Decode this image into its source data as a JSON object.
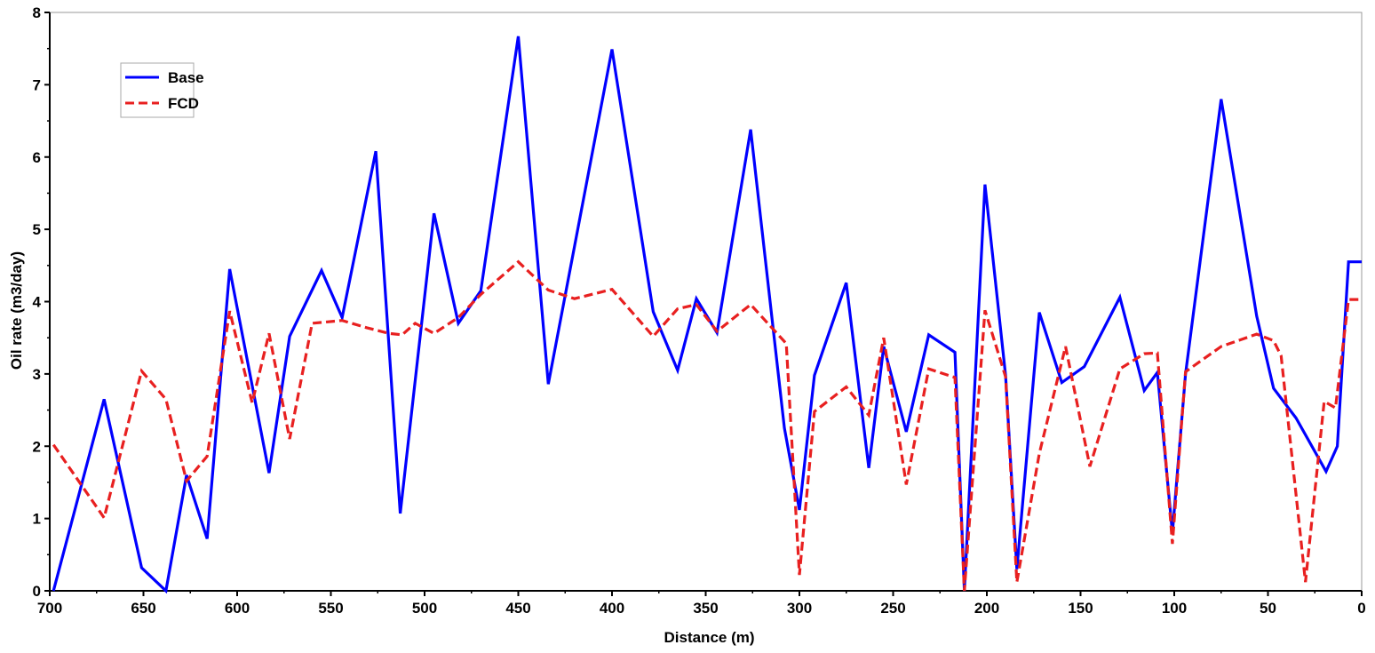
{
  "chart_data": {
    "type": "line",
    "title": "",
    "xlabel": "Distance (m)",
    "ylabel": "Oil rate (m3/day)",
    "xlim": [
      700,
      0
    ],
    "ylim": [
      0,
      8
    ],
    "x_reversed": true,
    "x_ticks": [
      700,
      650,
      600,
      550,
      500,
      450,
      400,
      350,
      300,
      250,
      200,
      150,
      100,
      50,
      0
    ],
    "y_ticks": [
      0,
      1,
      2,
      3,
      4,
      5,
      6,
      7,
      8
    ],
    "x_tick_labels": [
      "700",
      "650",
      "600",
      "550",
      "500",
      "450",
      "400",
      "350",
      "300",
      "250",
      "200",
      "150",
      "100",
      "50",
      "0"
    ],
    "y_tick_labels": [
      "0",
      "1",
      "2",
      "3",
      "4",
      "5",
      "6",
      "7",
      "8"
    ],
    "grid": false,
    "legend": "top-left",
    "series": [
      {
        "name": "Base",
        "color": "#0000ff",
        "dash": "solid",
        "points": [
          [
            698,
            0.0
          ],
          [
            671,
            2.65
          ],
          [
            651,
            0.32
          ],
          [
            638,
            0.0
          ],
          [
            627,
            1.6
          ],
          [
            616,
            0.72
          ],
          [
            604,
            4.45
          ],
          [
            583,
            1.63
          ],
          [
            572,
            3.52
          ],
          [
            555,
            4.43
          ],
          [
            544,
            3.78
          ],
          [
            526,
            6.08
          ],
          [
            513,
            1.07
          ],
          [
            495,
            5.22
          ],
          [
            482,
            3.7
          ],
          [
            470,
            4.15
          ],
          [
            450,
            7.67
          ],
          [
            434,
            2.86
          ],
          [
            400,
            7.49
          ],
          [
            378,
            3.86
          ],
          [
            365,
            3.05
          ],
          [
            355,
            4.04
          ],
          [
            344,
            3.57
          ],
          [
            326,
            6.38
          ],
          [
            308,
            2.25
          ],
          [
            300,
            1.12
          ],
          [
            292,
            2.98
          ],
          [
            275,
            4.26
          ],
          [
            263,
            1.7
          ],
          [
            255,
            3.38
          ],
          [
            243,
            2.2
          ],
          [
            231,
            3.54
          ],
          [
            217,
            3.3
          ],
          [
            212,
            0.0
          ],
          [
            201,
            5.62
          ],
          [
            190,
            2.98
          ],
          [
            184,
            0.3
          ],
          [
            172,
            3.85
          ],
          [
            160,
            2.88
          ],
          [
            148,
            3.1
          ],
          [
            129,
            4.06
          ],
          [
            116,
            2.77
          ],
          [
            109,
            3.02
          ],
          [
            101,
            0.8
          ],
          [
            94,
            3.0
          ],
          [
            75,
            6.8
          ],
          [
            56,
            3.8
          ],
          [
            47,
            2.8
          ],
          [
            35,
            2.39
          ],
          [
            19,
            1.65
          ],
          [
            13,
            2.0
          ],
          [
            7,
            4.55
          ],
          [
            0,
            4.55
          ]
        ]
      },
      {
        "name": "FCD",
        "color": "#e82020",
        "dash": "dashed",
        "points": [
          [
            698,
            2.02
          ],
          [
            671,
            1.01
          ],
          [
            651,
            3.04
          ],
          [
            638,
            2.65
          ],
          [
            627,
            1.52
          ],
          [
            616,
            1.86
          ],
          [
            604,
            3.87
          ],
          [
            592,
            2.6
          ],
          [
            583,
            3.56
          ],
          [
            572,
            2.1
          ],
          [
            560,
            3.7
          ],
          [
            544,
            3.74
          ],
          [
            531,
            3.64
          ],
          [
            519,
            3.56
          ],
          [
            512,
            3.54
          ],
          [
            505,
            3.7
          ],
          [
            495,
            3.56
          ],
          [
            482,
            3.78
          ],
          [
            470,
            4.1
          ],
          [
            450,
            4.55
          ],
          [
            434,
            4.16
          ],
          [
            420,
            4.04
          ],
          [
            400,
            4.17
          ],
          [
            378,
            3.52
          ],
          [
            365,
            3.9
          ],
          [
            355,
            3.96
          ],
          [
            344,
            3.59
          ],
          [
            326,
            3.96
          ],
          [
            307,
            3.42
          ],
          [
            300,
            0.22
          ],
          [
            292,
            2.48
          ],
          [
            275,
            2.82
          ],
          [
            263,
            2.43
          ],
          [
            255,
            3.5
          ],
          [
            243,
            1.47
          ],
          [
            231,
            3.07
          ],
          [
            217,
            2.95
          ],
          [
            212,
            0.0
          ],
          [
            201,
            3.88
          ],
          [
            190,
            2.96
          ],
          [
            184,
            0.12
          ],
          [
            172,
            1.9
          ],
          [
            158,
            3.38
          ],
          [
            145,
            1.72
          ],
          [
            129,
            3.07
          ],
          [
            116,
            3.28
          ],
          [
            109,
            3.29
          ],
          [
            101,
            0.65
          ],
          [
            94,
            3.03
          ],
          [
            75,
            3.38
          ],
          [
            56,
            3.55
          ],
          [
            47,
            3.46
          ],
          [
            43,
            3.25
          ],
          [
            30,
            0.12
          ],
          [
            20,
            2.62
          ],
          [
            14,
            2.53
          ],
          [
            7,
            4.03
          ],
          [
            0,
            4.03
          ]
        ]
      }
    ]
  }
}
